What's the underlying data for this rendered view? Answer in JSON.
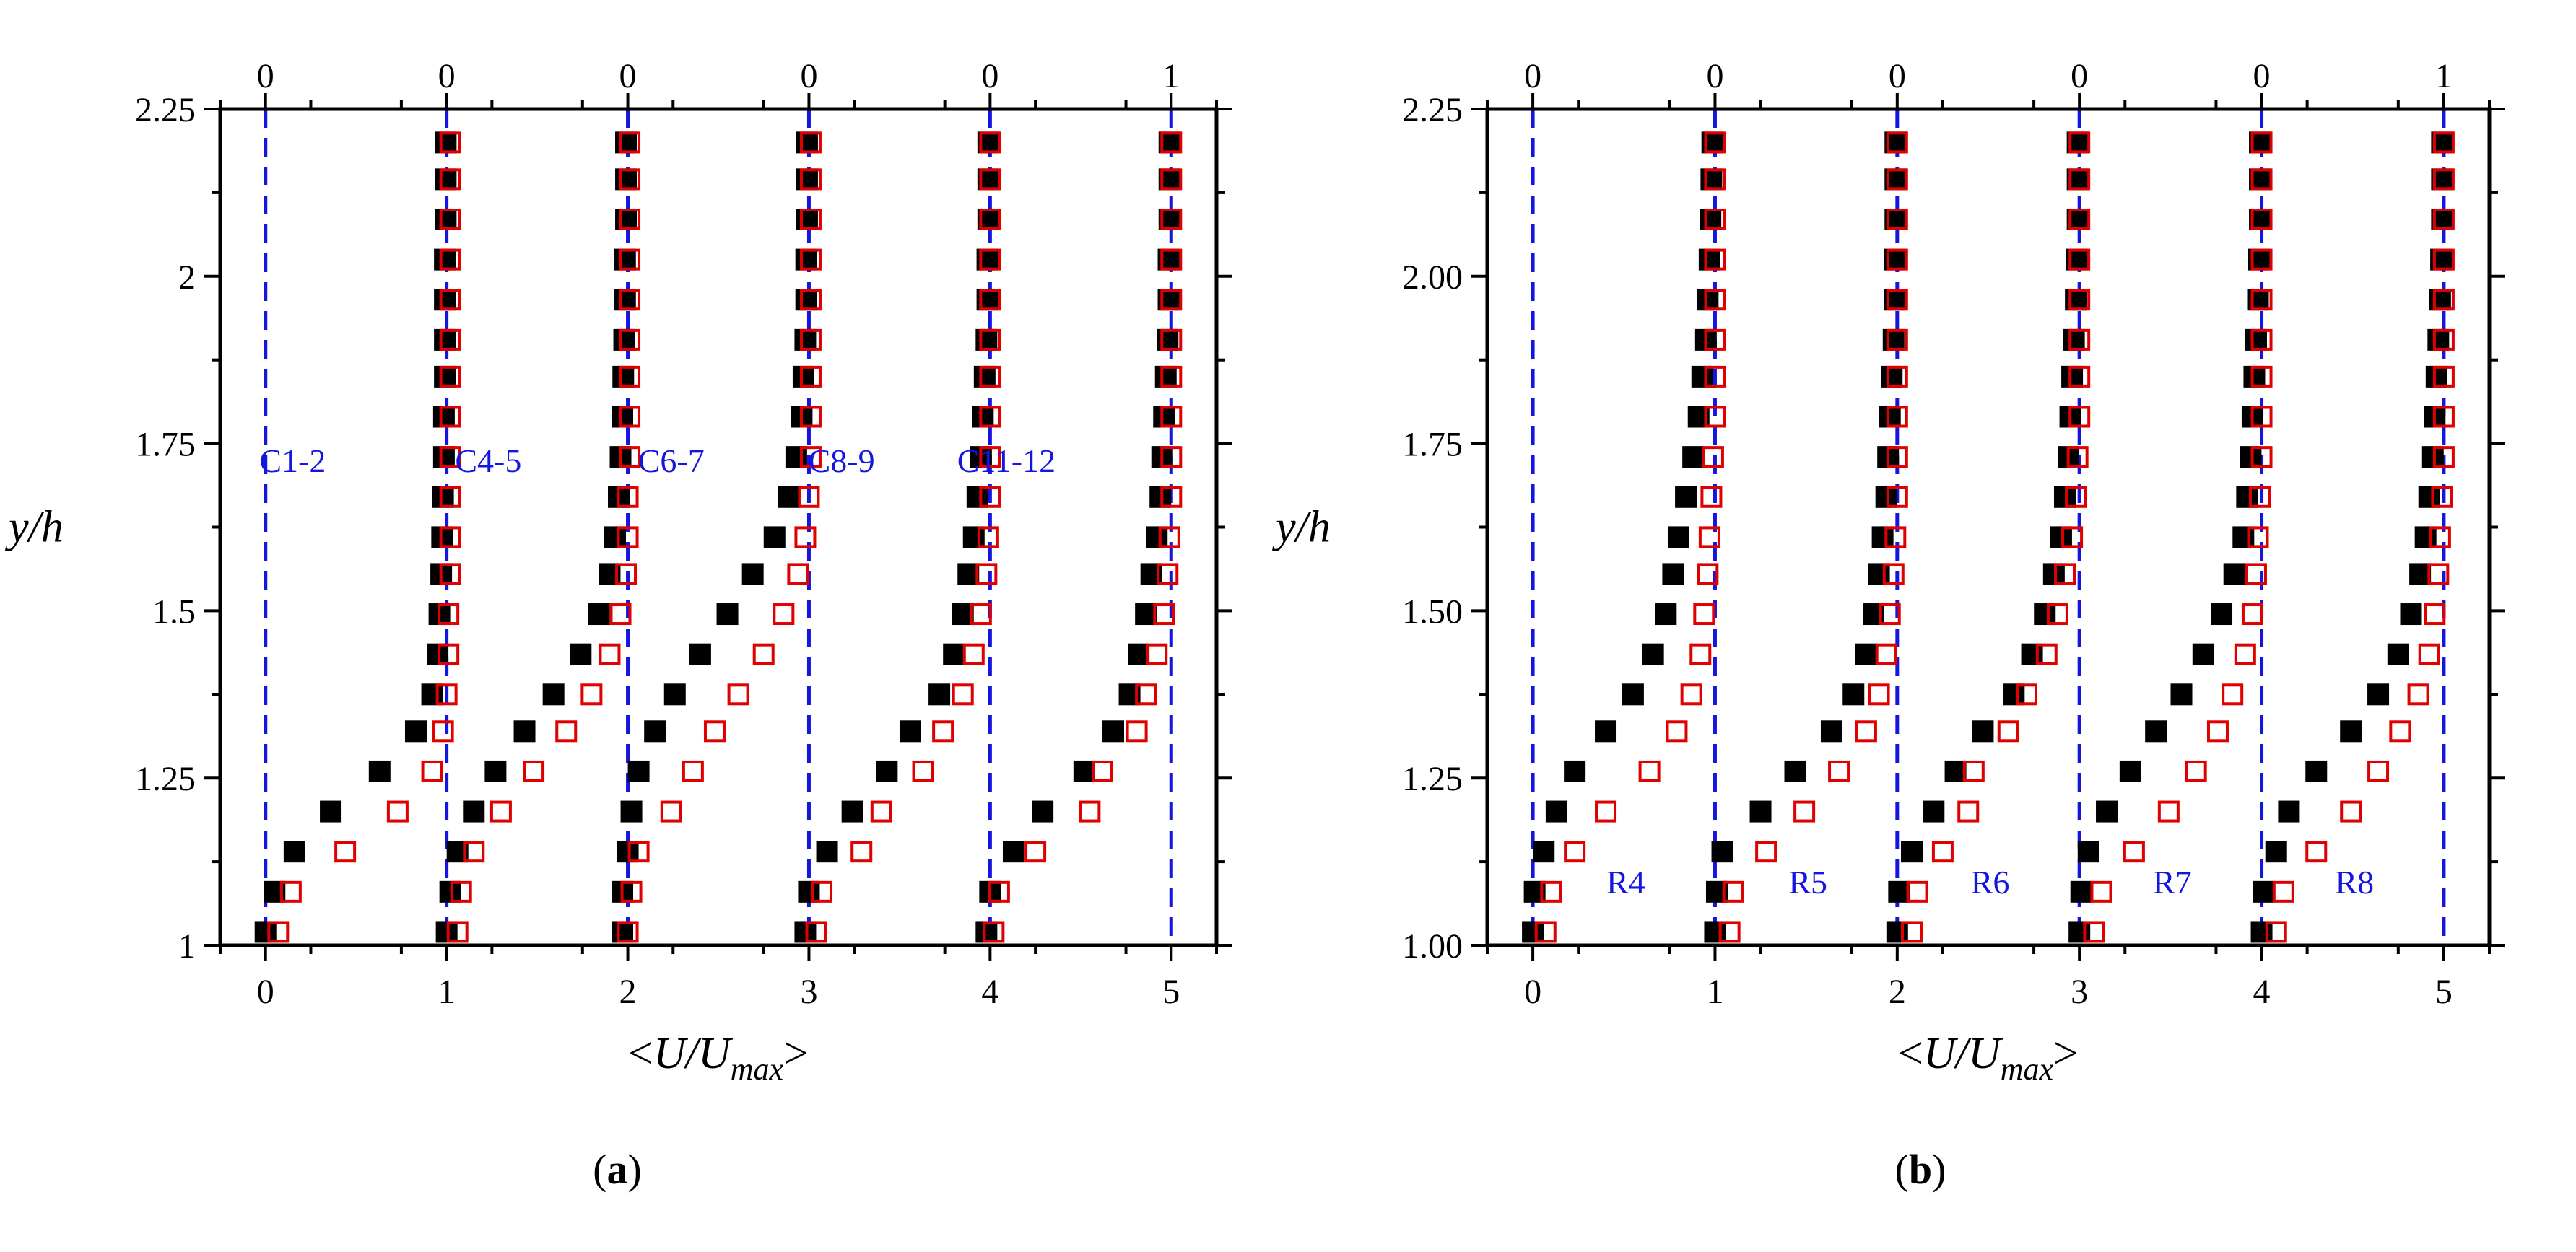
{
  "colors": {
    "axis": "#000000",
    "filled_marker": "#000000",
    "open_marker": "#e00000",
    "reference_line": "#1515e0",
    "annotation": "#1515e0"
  },
  "chart_data": [
    {
      "type": "scatter",
      "panel_label": "(a)",
      "caption": {
        "open": "(",
        "letter": "a",
        "close": ")"
      },
      "xlabel": {
        "lt": "<",
        "main": "U/U",
        "sub": "max",
        "gt": ">"
      },
      "ylabel": "y/h",
      "xlim": [
        -0.25,
        5.25
      ],
      "ylim": [
        1.0,
        2.25
      ],
      "x_ticks": [
        0,
        1,
        2,
        3,
        4,
        5
      ],
      "x_tick_labels": [
        "0",
        "1",
        "2",
        "3",
        "4",
        "5"
      ],
      "y_ticks": [
        1.0,
        1.25,
        1.5,
        1.75,
        2.0,
        2.25
      ],
      "y_tick_labels": [
        "1",
        "1.25",
        "1.5",
        "1.75",
        "2",
        "2.25"
      ],
      "top_tick_labels": [
        "0",
        "0",
        "0",
        "0",
        "0",
        "1"
      ],
      "reference_lines_x": [
        0,
        1,
        2,
        3,
        4,
        5
      ],
      "y": [
        1.02,
        1.08,
        1.14,
        1.2,
        1.26,
        1.32,
        1.375,
        1.435,
        1.495,
        1.555,
        1.61,
        1.67,
        1.73,
        1.79,
        1.85,
        1.905,
        1.965,
        2.025,
        2.085,
        2.145,
        2.2
      ],
      "profiles": [
        {
          "label": "C1-2",
          "offset": 0,
          "filled": [
            0.0,
            0.05,
            0.16,
            0.36,
            0.63,
            0.83,
            0.92,
            0.95,
            0.96,
            0.97,
            0.975,
            0.98,
            0.985,
            0.985,
            0.99,
            0.99,
            0.99,
            0.99,
            0.995,
            0.995,
            0.995
          ],
          "open": [
            0.07,
            0.14,
            0.44,
            0.73,
            0.92,
            0.98,
            1.0,
            1.01,
            1.01,
            1.02,
            1.02,
            1.02,
            1.02,
            1.02,
            1.02,
            1.02,
            1.02,
            1.02,
            1.02,
            1.02,
            1.02
          ]
        },
        {
          "label": "C4-5",
          "offset": 1,
          "filled": [
            0.0,
            0.02,
            0.06,
            0.15,
            0.27,
            0.43,
            0.59,
            0.74,
            0.84,
            0.9,
            0.93,
            0.95,
            0.96,
            0.97,
            0.975,
            0.98,
            0.985,
            0.985,
            0.99,
            0.99,
            0.99
          ],
          "open": [
            0.06,
            0.08,
            0.15,
            0.3,
            0.48,
            0.66,
            0.8,
            0.9,
            0.96,
            0.99,
            1.0,
            1.0,
            1.01,
            1.01,
            1.01,
            1.01,
            1.01,
            1.01,
            1.01,
            1.01,
            1.01
          ]
        },
        {
          "label": "C6-7",
          "offset": 2,
          "filled": [
            -0.03,
            -0.03,
            0.0,
            0.02,
            0.06,
            0.15,
            0.26,
            0.4,
            0.55,
            0.69,
            0.81,
            0.89,
            0.93,
            0.96,
            0.97,
            0.98,
            0.985,
            0.985,
            0.99,
            0.99,
            0.99
          ],
          "open": [
            0.0,
            0.02,
            0.06,
            0.24,
            0.36,
            0.48,
            0.61,
            0.75,
            0.86,
            0.94,
            0.98,
            1.0,
            1.01,
            1.01,
            1.01,
            1.01,
            1.01,
            1.01,
            1.01,
            1.01,
            1.01
          ]
        },
        {
          "label": "C8-9",
          "offset": 3,
          "filled": [
            -0.02,
            0.0,
            0.1,
            0.24,
            0.43,
            0.56,
            0.72,
            0.8,
            0.85,
            0.88,
            0.91,
            0.93,
            0.95,
            0.96,
            0.97,
            0.98,
            0.985,
            0.985,
            0.99,
            0.99,
            0.99
          ],
          "open": [
            0.04,
            0.07,
            0.29,
            0.4,
            0.63,
            0.74,
            0.85,
            0.91,
            0.95,
            0.98,
            0.99,
            1.0,
            1.0,
            1.0,
            1.0,
            1.0,
            1.0,
            1.0,
            1.0,
            1.0,
            1.0
          ]
        },
        {
          "label": "C11-12",
          "offset": 4,
          "filled": [
            -0.02,
            0.0,
            0.13,
            0.29,
            0.52,
            0.68,
            0.77,
            0.82,
            0.86,
            0.89,
            0.92,
            0.94,
            0.95,
            0.96,
            0.97,
            0.98,
            0.985,
            0.985,
            0.99,
            0.99,
            0.99
          ],
          "open": [
            0.02,
            0.05,
            0.25,
            0.55,
            0.62,
            0.81,
            0.86,
            0.92,
            0.96,
            0.98,
            0.99,
            1.0,
            1.0,
            1.0,
            1.0,
            1.0,
            1.0,
            1.0,
            1.0,
            1.0,
            1.0
          ]
        }
      ],
      "profile_label_y": 1.725,
      "profile_label_dx": [
        0.15,
        0.23,
        0.24,
        0.18,
        0.09
      ]
    },
    {
      "type": "scatter",
      "panel_label": "(b)",
      "caption": {
        "open": "(",
        "letter": "b",
        "close": ")"
      },
      "xlabel": {
        "lt": "<",
        "main": "U/U",
        "sub": "max",
        "gt": ">"
      },
      "ylabel": "y/h",
      "xlim": [
        -0.25,
        5.25
      ],
      "ylim": [
        1.0,
        2.25
      ],
      "x_ticks": [
        0,
        1,
        2,
        3,
        4,
        5
      ],
      "x_tick_labels": [
        "0",
        "1",
        "2",
        "3",
        "4",
        "5"
      ],
      "y_ticks": [
        1.0,
        1.25,
        1.5,
        1.75,
        2.0,
        2.25
      ],
      "y_tick_labels": [
        "1.00",
        "1.25",
        "1.50",
        "1.75",
        "2.00",
        "2.25"
      ],
      "top_tick_labels": [
        "0",
        "0",
        "0",
        "0",
        "0",
        "1"
      ],
      "reference_lines_x": [
        0,
        1,
        2,
        3,
        4,
        5
      ],
      "y": [
        1.02,
        1.08,
        1.14,
        1.2,
        1.26,
        1.32,
        1.375,
        1.435,
        1.495,
        1.555,
        1.61,
        1.67,
        1.73,
        1.79,
        1.85,
        1.905,
        1.965,
        2.025,
        2.085,
        2.145,
        2.2
      ],
      "profiles": [
        {
          "label": "R4",
          "offset": 0,
          "filled": [
            0.0,
            0.01,
            0.06,
            0.13,
            0.23,
            0.4,
            0.55,
            0.66,
            0.73,
            0.77,
            0.8,
            0.84,
            0.88,
            0.91,
            0.93,
            0.95,
            0.96,
            0.97,
            0.975,
            0.98,
            0.985
          ],
          "open": [
            0.07,
            0.1,
            0.23,
            0.4,
            0.64,
            0.79,
            0.87,
            0.92,
            0.94,
            0.96,
            0.97,
            0.98,
            0.99,
            1.0,
            1.0,
            1.0,
            1.0,
            1.0,
            1.0,
            1.0,
            1.0
          ]
        },
        {
          "label": "R5",
          "offset": 1,
          "filled": [
            0.0,
            0.01,
            0.04,
            0.25,
            0.44,
            0.64,
            0.76,
            0.83,
            0.87,
            0.9,
            0.92,
            0.94,
            0.95,
            0.96,
            0.97,
            0.98,
            0.985,
            0.985,
            0.99,
            0.99,
            0.99
          ],
          "open": [
            0.08,
            0.1,
            0.28,
            0.49,
            0.68,
            0.83,
            0.9,
            0.94,
            0.96,
            0.98,
            0.99,
            1.0,
            1.0,
            1.0,
            1.0,
            1.0,
            1.0,
            1.0,
            1.0,
            1.0,
            1.0
          ]
        },
        {
          "label": "R6",
          "offset": 2,
          "filled": [
            0.0,
            0.01,
            0.08,
            0.2,
            0.32,
            0.47,
            0.64,
            0.74,
            0.81,
            0.86,
            0.9,
            0.92,
            0.94,
            0.95,
            0.96,
            0.97,
            0.98,
            0.985,
            0.99,
            0.99,
            0.99
          ],
          "open": [
            0.08,
            0.11,
            0.25,
            0.39,
            0.42,
            0.61,
            0.71,
            0.82,
            0.88,
            0.92,
            0.96,
            0.98,
            0.99,
            1.0,
            1.0,
            1.0,
            1.0,
            1.0,
            1.0,
            1.0,
            1.0
          ]
        },
        {
          "label": "R7",
          "offset": 3,
          "filled": [
            0.0,
            0.01,
            0.05,
            0.15,
            0.28,
            0.42,
            0.56,
            0.68,
            0.78,
            0.85,
            0.9,
            0.92,
            0.94,
            0.95,
            0.96,
            0.97,
            0.98,
            0.985,
            0.99,
            0.99,
            0.99
          ],
          "open": [
            0.08,
            0.12,
            0.3,
            0.49,
            0.64,
            0.76,
            0.84,
            0.91,
            0.95,
            0.97,
            0.98,
            0.99,
            1.0,
            1.0,
            1.0,
            1.0,
            1.0,
            1.0,
            1.0,
            1.0,
            1.0
          ]
        },
        {
          "label": "R8",
          "offset": 4,
          "filled": [
            0.0,
            0.01,
            0.08,
            0.15,
            0.3,
            0.49,
            0.64,
            0.75,
            0.82,
            0.87,
            0.9,
            0.92,
            0.94,
            0.95,
            0.96,
            0.97,
            0.98,
            0.985,
            0.99,
            0.99,
            0.99
          ],
          "open": [
            0.08,
            0.12,
            0.3,
            0.49,
            0.64,
            0.76,
            0.86,
            0.92,
            0.95,
            0.97,
            0.98,
            0.99,
            1.0,
            1.0,
            1.0,
            1.0,
            1.0,
            1.0,
            1.0,
            1.0,
            1.0
          ]
        }
      ],
      "profile_label_y": 1.095,
      "profile_label_dx": [
        0.51,
        0.51,
        0.51,
        0.51,
        0.51
      ]
    }
  ]
}
